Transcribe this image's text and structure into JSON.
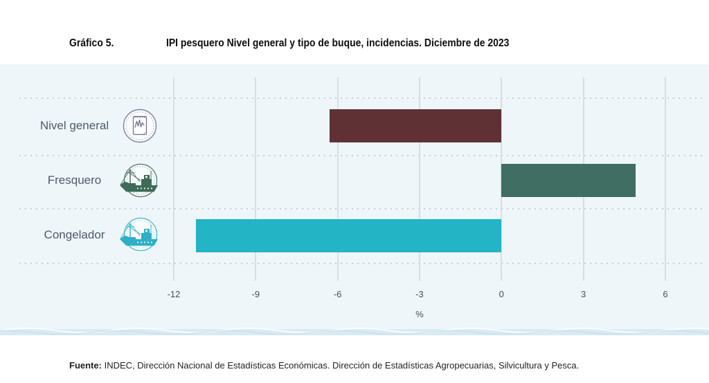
{
  "header": {
    "kicker": "Gráfico 5."
  },
  "chart_data": {
    "type": "bar",
    "orientation": "horizontal",
    "title": "IPI pesquero Nivel general y tipo de buque, incidencias. Diciembre de 2023",
    "categories": [
      "Nivel general",
      "Fresquero",
      "Congelador"
    ],
    "values": [
      -6.3,
      4.9,
      -11.2
    ],
    "colors": [
      "#5f3135",
      "#406e63",
      "#23b4c6"
    ],
    "icons": [
      "line-chart-stamp",
      "fishing-boat-stamp-green",
      "fishing-boat-stamp-cyan"
    ],
    "xticks": [
      -12,
      -9,
      -6,
      -3,
      0,
      3,
      6
    ],
    "xlabel": "%",
    "xlim": [
      -13.5,
      7.5
    ],
    "grid": "vertical-only",
    "legend": "none",
    "row_separators": "dotted"
  },
  "theme": {
    "panel_bg": "#eef6fa",
    "grid": "#d9dde2",
    "dot": "#c8ced6",
    "label": "#4d5a68",
    "tick": "#4b4f54",
    "title": "#0d0d0d",
    "footer": "#1f1f1f",
    "wave_band": "#d8ebf3"
  },
  "footer": {
    "label": "Fuente:",
    "text": "INDEC, Dirección Nacional de Estadísticas Económicas. Dirección de Estadísticas Agropecuarias, Silvicultura y Pesca."
  }
}
